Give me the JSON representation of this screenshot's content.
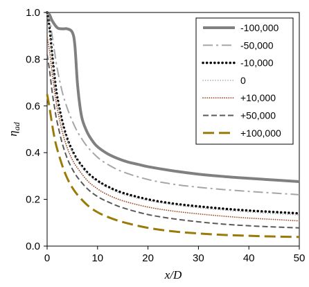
{
  "chart_data": {
    "type": "line",
    "title": "",
    "xlabel": "x/D",
    "ylabel": "η_ad",
    "xlim": [
      0,
      50
    ],
    "ylim": [
      0,
      1.0
    ],
    "x_ticks": [
      "0",
      "10",
      "20",
      "30",
      "40",
      "50"
    ],
    "y_ticks": [
      "0.0",
      "0.2",
      "0.4",
      "0.6",
      "0.8",
      "1.0"
    ],
    "grid": false,
    "legend_position": "top-right",
    "series": [
      {
        "name": "-100,000",
        "color": "#808080",
        "style": "solid-thick",
        "x": [
          0,
          0.5,
          1,
          2,
          3,
          4,
          5,
          5.5,
          6,
          6.5,
          7,
          8,
          9,
          10,
          12,
          14,
          16,
          18,
          20,
          25,
          30,
          35,
          40,
          45,
          50
        ],
        "y": [
          1.0,
          0.99,
          0.965,
          0.935,
          0.93,
          0.93,
          0.915,
          0.86,
          0.7,
          0.6,
          0.54,
          0.485,
          0.45,
          0.425,
          0.395,
          0.375,
          0.36,
          0.35,
          0.34,
          0.322,
          0.308,
          0.298,
          0.29,
          0.283,
          0.276
        ]
      },
      {
        "name": "-50,000",
        "color": "#a6a6a6",
        "style": "dash-dot",
        "x": [
          0,
          0.5,
          1,
          1.5,
          2,
          3,
          4,
          5,
          6,
          7,
          8,
          10,
          12,
          15,
          20,
          25,
          30,
          35,
          40,
          45,
          50
        ],
        "y": [
          1.0,
          0.97,
          0.9,
          0.83,
          0.76,
          0.66,
          0.59,
          0.535,
          0.49,
          0.455,
          0.425,
          0.38,
          0.35,
          0.318,
          0.285,
          0.265,
          0.252,
          0.242,
          0.234,
          0.227,
          0.22
        ]
      },
      {
        "name": "-10,000",
        "color": "#000000",
        "style": "dotted-heavy",
        "x": [
          0,
          0.5,
          1,
          1.5,
          2,
          3,
          4,
          5,
          6,
          8,
          10,
          12,
          15,
          20,
          25,
          30,
          35,
          40,
          45,
          50
        ],
        "y": [
          1.0,
          0.93,
          0.82,
          0.72,
          0.64,
          0.535,
          0.46,
          0.41,
          0.37,
          0.315,
          0.28,
          0.255,
          0.228,
          0.2,
          0.182,
          0.17,
          0.16,
          0.152,
          0.146,
          0.14
        ]
      },
      {
        "name": "0",
        "color": "#a6a6a6",
        "style": "dotted-light",
        "x": [
          0,
          0.5,
          1,
          1.5,
          2,
          3,
          4,
          5,
          6,
          8,
          10,
          12,
          15,
          20,
          25,
          30,
          35,
          40,
          45,
          50
        ],
        "y": [
          1.0,
          0.92,
          0.81,
          0.71,
          0.63,
          0.525,
          0.455,
          0.405,
          0.365,
          0.31,
          0.275,
          0.25,
          0.222,
          0.195,
          0.177,
          0.164,
          0.154,
          0.146,
          0.139,
          0.133
        ]
      },
      {
        "name": "+10,000",
        "color": "#a0522d",
        "style": "dotted-brown",
        "x": [
          0,
          0.5,
          1,
          1.5,
          2,
          3,
          4,
          5,
          6,
          8,
          10,
          12,
          15,
          20,
          25,
          30,
          35,
          40,
          45,
          50
        ],
        "y": [
          0.9,
          0.83,
          0.74,
          0.66,
          0.59,
          0.49,
          0.42,
          0.37,
          0.335,
          0.28,
          0.245,
          0.22,
          0.194,
          0.167,
          0.15,
          0.138,
          0.128,
          0.12,
          0.114,
          0.108
        ]
      },
      {
        "name": "+50,000",
        "color": "#595959",
        "style": "dashed",
        "x": [
          0,
          0.5,
          1,
          1.5,
          2,
          3,
          4,
          5,
          6,
          8,
          10,
          12,
          15,
          20,
          25,
          30,
          35,
          40,
          45,
          50
        ],
        "y": [
          0.82,
          0.75,
          0.66,
          0.59,
          0.53,
          0.44,
          0.375,
          0.33,
          0.295,
          0.245,
          0.212,
          0.19,
          0.164,
          0.135,
          0.117,
          0.104,
          0.094,
          0.087,
          0.082,
          0.078
        ]
      },
      {
        "name": "+100,000",
        "color": "#9a7b0a",
        "style": "long-dash",
        "x": [
          0,
          0.5,
          1,
          1.5,
          2,
          3,
          4,
          5,
          6,
          8,
          10,
          12,
          15,
          20,
          25,
          30,
          35,
          40,
          45,
          50
        ],
        "y": [
          0.65,
          0.59,
          0.52,
          0.46,
          0.415,
          0.345,
          0.29,
          0.25,
          0.22,
          0.175,
          0.145,
          0.125,
          0.103,
          0.078,
          0.063,
          0.054,
          0.048,
          0.044,
          0.041,
          0.039
        ]
      }
    ]
  }
}
